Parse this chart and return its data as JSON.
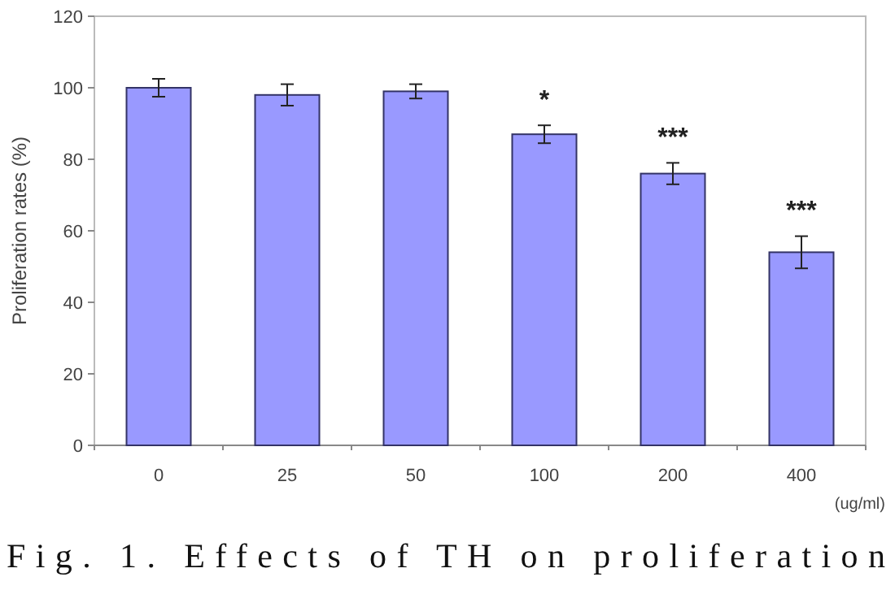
{
  "chart_data": {
    "type": "bar",
    "ylabel": "Proliferation rates (%)",
    "xlabel": "(ug/ml)",
    "categories": [
      "0",
      "25",
      "50",
      "100",
      "200",
      "400"
    ],
    "values": [
      100,
      98,
      99,
      87,
      76,
      54
    ],
    "errors": [
      2.5,
      3,
      2,
      2.5,
      3,
      4.5
    ],
    "color": "#9999ff",
    "ylim": [
      0,
      120
    ],
    "yticks": [
      0,
      20,
      40,
      60,
      80,
      100,
      120
    ],
    "annotations": [
      {
        "text": "*",
        "x": "100",
        "y": 89.5
      },
      {
        "text": "***",
        "x": "200",
        "y": 79
      },
      {
        "text": "***",
        "x": "400",
        "y": 58.5
      },
      "Fig. 1. Effects of TH on proliferation"
    ]
  }
}
